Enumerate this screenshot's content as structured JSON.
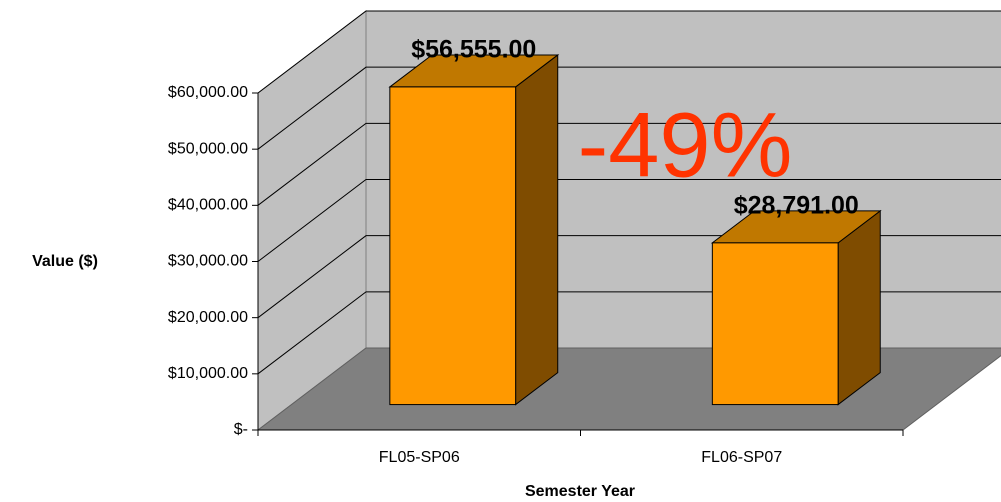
{
  "chart_data": {
    "type": "bar3d",
    "categories": [
      "FL05-SP06",
      "FL06-SP07"
    ],
    "values": [
      56555,
      28791
    ],
    "value_labels": [
      "$56,555.00",
      "$28,791.00"
    ],
    "color": "#ff9900",
    "ylim": [
      0,
      60000
    ],
    "yticks": [
      {
        "value": 0,
        "label": "$-"
      },
      {
        "value": 10000,
        "label": "$10,000.00"
      },
      {
        "value": 20000,
        "label": "$20,000.00"
      },
      {
        "value": 30000,
        "label": "$30,000.00"
      },
      {
        "value": 40000,
        "label": "$40,000.00"
      },
      {
        "value": 50000,
        "label": "$50,000.00"
      },
      {
        "value": 60000,
        "label": "$60,000.00"
      }
    ],
    "y_axis_label": "Value ($)",
    "x_axis_label": "Semester Year",
    "annotation": "-49%",
    "grid": true
  }
}
